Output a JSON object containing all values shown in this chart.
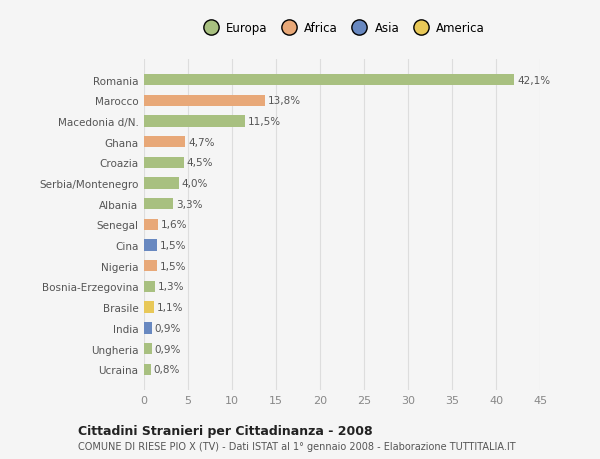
{
  "categories": [
    "Romania",
    "Marocco",
    "Macedonia d/N.",
    "Ghana",
    "Croazia",
    "Serbia/Montenegro",
    "Albania",
    "Senegal",
    "Cina",
    "Nigeria",
    "Bosnia-Erzegovina",
    "Brasile",
    "India",
    "Ungheria",
    "Ucraina"
  ],
  "values": [
    42.1,
    13.8,
    11.5,
    4.7,
    4.5,
    4.0,
    3.3,
    1.6,
    1.5,
    1.5,
    1.3,
    1.1,
    0.9,
    0.9,
    0.8
  ],
  "labels": [
    "42,1%",
    "13,8%",
    "11,5%",
    "4,7%",
    "4,5%",
    "4,0%",
    "3,3%",
    "1,6%",
    "1,5%",
    "1,5%",
    "1,3%",
    "1,1%",
    "0,9%",
    "0,9%",
    "0,8%"
  ],
  "colors": [
    "#a8c080",
    "#e8a878",
    "#a8c080",
    "#e8a878",
    "#a8c080",
    "#a8c080",
    "#a8c080",
    "#e8a878",
    "#6888c0",
    "#e8a878",
    "#a8c080",
    "#e8c858",
    "#6888c0",
    "#a8c080",
    "#a8c080"
  ],
  "legend_labels": [
    "Europa",
    "Africa",
    "Asia",
    "America"
  ],
  "legend_colors": [
    "#a8c080",
    "#e8a878",
    "#6888c0",
    "#e8c858"
  ],
  "title": "Cittadini Stranieri per Cittadinanza - 2008",
  "subtitle": "COMUNE DI RIESE PIO X (TV) - Dati ISTAT al 1° gennaio 2008 - Elaborazione TUTTITALIA.IT",
  "xlim": [
    0,
    45
  ],
  "xticks": [
    0,
    5,
    10,
    15,
    20,
    25,
    30,
    35,
    40,
    45
  ],
  "background_color": "#f5f5f5",
  "grid_color": "#dddddd"
}
